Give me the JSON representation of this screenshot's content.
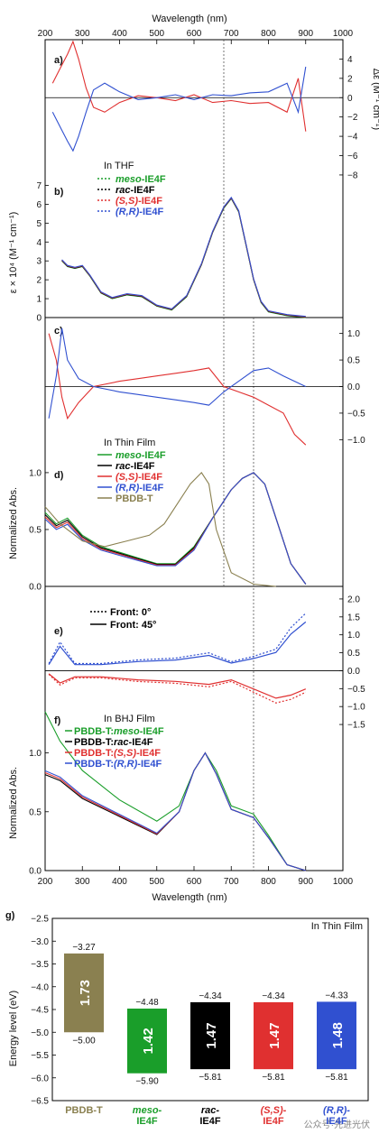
{
  "chart_data": [
    {
      "id": "top_axis",
      "type": "line",
      "xlabel": "Wavelength (nm)",
      "xticks": [
        200,
        300,
        400,
        500,
        600,
        700,
        800,
        900,
        1000
      ]
    },
    {
      "id": "a",
      "panel_label": "a)",
      "type": "line",
      "ylabel": "Δε (M⁻¹ cm⁻¹)",
      "xlim": [
        200,
        1000
      ],
      "ylim": [
        -9.5,
        6
      ],
      "yticks": [
        4,
        2,
        0,
        -2,
        -4,
        -6,
        -8
      ],
      "series": [
        {
          "color": "#e03030",
          "x": [
            220,
            240,
            260,
            275,
            290,
            310,
            330,
            360,
            400,
            450,
            500,
            550,
            600,
            650,
            700,
            750,
            800,
            850,
            880,
            900
          ],
          "y": [
            1.5,
            3.0,
            4.5,
            5.8,
            4.0,
            1.0,
            -1.0,
            -1.5,
            -0.5,
            0.2,
            0.0,
            -0.3,
            0.3,
            -0.5,
            -0.3,
            -0.6,
            -0.5,
            -1.5,
            2.0,
            -3.5
          ]
        },
        {
          "color": "#3050d0",
          "x": [
            220,
            240,
            260,
            275,
            290,
            310,
            330,
            360,
            400,
            450,
            500,
            550,
            600,
            650,
            700,
            750,
            800,
            850,
            880,
            900
          ],
          "y": [
            -1.5,
            -3.0,
            -4.5,
            -5.5,
            -4.0,
            -1.5,
            0.8,
            1.5,
            0.6,
            -0.2,
            0.0,
            0.3,
            -0.2,
            0.3,
            0.2,
            0.5,
            0.6,
            1.5,
            -1.5,
            3.2
          ]
        }
      ]
    },
    {
      "id": "b",
      "panel_label": "b)",
      "type": "line",
      "ylabel": "ε × 10⁴ (M⁻¹ cm⁻¹)",
      "xlim": [
        200,
        1000
      ],
      "ylim": [
        0,
        7.5
      ],
      "yticks": [
        0,
        1,
        2,
        3,
        4,
        5,
        6,
        7
      ],
      "legend_title": "In THF",
      "legend": [
        {
          "italic": "meso",
          "rest": "-IE4F",
          "color": "#1a9e2a"
        },
        {
          "italic": "rac",
          "rest": "-IE4F",
          "color": "#000000"
        },
        {
          "italic": "(S,S)",
          "rest": "-IE4F",
          "color": "#e03030"
        },
        {
          "italic": "(R,R)",
          "rest": "-IE4F",
          "color": "#3050d0"
        }
      ],
      "x": [
        245,
        260,
        280,
        300,
        320,
        350,
        380,
        420,
        460,
        500,
        540,
        580,
        620,
        650,
        680,
        700,
        720,
        740,
        760,
        780,
        800,
        850,
        900
      ],
      "y": [
        3.0,
        2.7,
        2.6,
        2.7,
        2.2,
        1.3,
        1.0,
        1.2,
        1.1,
        0.6,
        0.4,
        1.1,
        2.8,
        4.5,
        5.8,
        6.3,
        5.6,
        3.8,
        2.0,
        0.8,
        0.3,
        0.1,
        0.0
      ]
    },
    {
      "id": "c",
      "panel_label": "c)",
      "type": "line",
      "xlim": [
        200,
        1000
      ],
      "ylim": [
        -1.3,
        1.3
      ],
      "yticks": [
        1.0,
        0.5,
        0.0,
        -0.5,
        -1.0
      ],
      "series": [
        {
          "color": "#e03030",
          "x": [
            210,
            230,
            245,
            260,
            290,
            330,
            400,
            450,
            500,
            550,
            600,
            640,
            680,
            720,
            760,
            800,
            840,
            870,
            900
          ],
          "y": [
            1.0,
            0.5,
            -0.2,
            -0.6,
            -0.3,
            0.0,
            0.1,
            0.15,
            0.2,
            0.25,
            0.3,
            0.35,
            0.0,
            -0.1,
            -0.2,
            -0.35,
            -0.5,
            -0.9,
            -1.1
          ]
        },
        {
          "color": "#3050d0",
          "x": [
            210,
            230,
            245,
            260,
            290,
            330,
            400,
            450,
            500,
            550,
            600,
            640,
            680,
            720,
            760,
            800,
            840,
            870,
            900
          ],
          "y": [
            -0.6,
            0.2,
            1.1,
            0.5,
            0.15,
            0.0,
            -0.1,
            -0.15,
            -0.2,
            -0.25,
            -0.3,
            -0.35,
            -0.1,
            0.1,
            0.3,
            0.35,
            0.2,
            0.1,
            0.0
          ]
        }
      ]
    },
    {
      "id": "d",
      "panel_label": "d)",
      "type": "line",
      "ylabel": "Normalized Abs.",
      "xlim": [
        200,
        1000
      ],
      "ylim": [
        0,
        1.15
      ],
      "yticks": [
        0.0,
        0.5,
        1.0
      ],
      "legend_title": "In Thin Film",
      "legend": [
        {
          "italic": "meso",
          "rest": "-IE4F",
          "color": "#1a9e2a"
        },
        {
          "italic": "rac",
          "rest": "-IE4F",
          "color": "#000000"
        },
        {
          "italic": "(S,S)",
          "rest": "-IE4F",
          "color": "#e03030"
        },
        {
          "italic": "(R,R)",
          "rest": "-IE4F",
          "color": "#3050d0"
        },
        {
          "italic": "",
          "rest": "PBDB-T",
          "color": "#8a8050"
        }
      ],
      "series": [
        {
          "color": "#000000",
          "x": [
            200,
            230,
            260,
            300,
            350,
            400,
            450,
            500,
            550,
            600,
            650,
            700,
            730,
            760,
            790,
            820,
            860,
            900
          ],
          "y": [
            0.65,
            0.55,
            0.6,
            0.45,
            0.35,
            0.3,
            0.25,
            0.2,
            0.2,
            0.35,
            0.6,
            0.85,
            0.95,
            1.0,
            0.9,
            0.6,
            0.2,
            0.02
          ]
        },
        {
          "color": "#8a8050",
          "x": [
            200,
            240,
            300,
            360,
            420,
            480,
            520,
            560,
            590,
            620,
            640,
            660,
            700,
            760,
            820
          ],
          "y": [
            0.7,
            0.55,
            0.4,
            0.35,
            0.4,
            0.45,
            0.55,
            0.75,
            0.9,
            1.0,
            0.9,
            0.5,
            0.12,
            0.02,
            0.0
          ]
        }
      ]
    },
    {
      "id": "e",
      "panel_label": "e)",
      "type": "line",
      "xlim": [
        200,
        1000
      ],
      "ylim": [
        -1.8,
        2.3
      ],
      "yticks": [
        2.0,
        1.5,
        1.0,
        0.5,
        0.0,
        -0.5,
        -1.0,
        -1.5
      ],
      "legend": [
        {
          "label": "Front: 0°",
          "style": "dotted"
        },
        {
          "label": "Front: 45°",
          "style": "solid"
        }
      ],
      "series": [
        {
          "color": "#3050d0",
          "x": [
            210,
            240,
            280,
            350,
            450,
            550,
            640,
            700,
            760,
            820,
            860,
            900
          ],
          "y": [
            0.2,
            0.8,
            0.2,
            0.2,
            0.3,
            0.35,
            0.5,
            0.25,
            0.4,
            0.6,
            1.2,
            1.6
          ]
        },
        {
          "color": "#e03030",
          "x": [
            210,
            240,
            280,
            350,
            450,
            550,
            640,
            700,
            760,
            820,
            860,
            900
          ],
          "y": [
            -0.1,
            -0.4,
            -0.2,
            -0.2,
            -0.3,
            -0.35,
            -0.45,
            -0.3,
            -0.6,
            -0.9,
            -0.8,
            -0.6
          ]
        }
      ]
    },
    {
      "id": "f",
      "panel_label": "f)",
      "type": "line",
      "ylabel": "Normalized Abs.",
      "xlabel": "Wavelength (nm)",
      "xlim": [
        200,
        1000
      ],
      "ylim": [
        0,
        1.15
      ],
      "xticks": [
        200,
        300,
        400,
        500,
        600,
        700,
        800,
        900,
        1000
      ],
      "yticks": [
        0.0,
        0.5,
        1.0
      ],
      "legend_title": "In BHJ Film",
      "legend": [
        {
          "text": "PBDB-T:",
          "italic": "meso",
          "rest": "-IE4F",
          "color": "#1a9e2a"
        },
        {
          "text": "PBDB-T:",
          "italic": "rac",
          "rest": "-IE4F",
          "color": "#000000"
        },
        {
          "text": "PBDB-T:",
          "italic": "(S,S)",
          "rest": "-IE4F",
          "color": "#e03030"
        },
        {
          "text": "PBDB-T:",
          "italic": "(R,R)",
          "rest": "-IE4F",
          "color": "#3050d0"
        }
      ],
      "series": [
        {
          "color": "#1a9e2a",
          "x": [
            200,
            240,
            300,
            400,
            500,
            560,
            600,
            630,
            660,
            700,
            760,
            800,
            850,
            900
          ],
          "y": [
            1.35,
            1.1,
            0.85,
            0.6,
            0.42,
            0.55,
            0.85,
            1.0,
            0.85,
            0.55,
            0.48,
            0.3,
            0.05,
            0.0
          ]
        },
        {
          "color": "#000000",
          "x": [
            200,
            240,
            300,
            400,
            500,
            560,
            600,
            630,
            660,
            700,
            760,
            800,
            850,
            900
          ],
          "y": [
            0.8,
            0.75,
            0.6,
            0.45,
            0.3,
            0.5,
            0.85,
            1.0,
            0.82,
            0.52,
            0.45,
            0.28,
            0.05,
            0.0
          ]
        }
      ]
    },
    {
      "id": "g",
      "panel_label": "g)",
      "type": "bar",
      "ylabel": "Energy level (eV)",
      "annotation": "In Thin Film",
      "ylim": [
        -6.5,
        -2.5
      ],
      "yticks": [
        -2.5,
        -3.0,
        -3.5,
        -4.0,
        -4.5,
        -5.0,
        -5.5,
        -6.0,
        -6.5
      ],
      "categories": [
        {
          "italic": "",
          "rest": "PBDB-T"
        },
        {
          "italic": "meso-",
          "rest": "IE4F"
        },
        {
          "italic": "rac-",
          "rest": "IE4F"
        },
        {
          "italic": "(S,S)-",
          "rest": "IE4F"
        },
        {
          "italic": "(R,R)-",
          "rest": "IE4F"
        }
      ],
      "lumo": [
        -3.27,
        -4.48,
        -4.34,
        -4.34,
        -4.33
      ],
      "homo": [
        -5.0,
        -5.9,
        -5.81,
        -5.81,
        -5.81
      ],
      "lumo_labels": [
        "−3.27",
        "−4.48",
        "−4.34",
        "−4.34",
        "−4.33"
      ],
      "homo_labels": [
        "−5.00",
        "−5.90",
        "−5.81",
        "−5.81",
        "−5.81"
      ],
      "gap_labels": [
        "1.73",
        "1.42",
        "1.47",
        "1.47",
        "1.48"
      ],
      "colors": [
        "#8a8050",
        "#1a9e2a",
        "#000000",
        "#e03030",
        "#3050d0"
      ]
    }
  ],
  "reference_lines_nm": [
    680,
    760
  ],
  "watermark": "公众号·先进光伏"
}
